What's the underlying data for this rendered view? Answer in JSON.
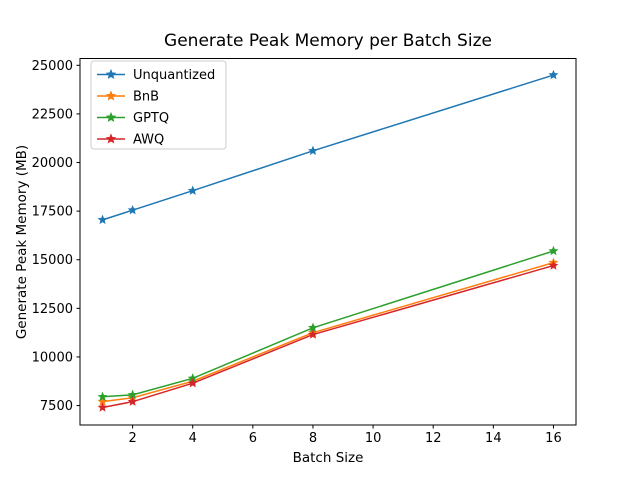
{
  "figure": {
    "background_color": "#ffffff",
    "axes_edge_color": "#000000"
  },
  "chart_data": {
    "type": "line",
    "title": "Generate Peak Memory per Batch Size",
    "xlabel": "Batch Size",
    "ylabel": "Generate Peak Memory (MB)",
    "x": [
      1,
      2,
      4,
      8,
      16
    ],
    "series": [
      {
        "name": "Unquantized",
        "color": "#1f77b4",
        "values": [
          17050,
          17550,
          18550,
          20600,
          24500
        ]
      },
      {
        "name": "BnB",
        "color": "#ff7f0e",
        "values": [
          7700,
          7900,
          8750,
          11250,
          14850
        ]
      },
      {
        "name": "GPTQ",
        "color": "#2ca02c",
        "values": [
          7950,
          8050,
          8900,
          11500,
          15450
        ]
      },
      {
        "name": "AWQ",
        "color": "#d62728",
        "values": [
          7400,
          7700,
          8650,
          11150,
          14700
        ]
      }
    ],
    "marker": "star",
    "line_width": 1.5,
    "xticks": [
      2,
      4,
      6,
      8,
      10,
      12,
      14,
      16
    ],
    "yticks": [
      7500,
      10000,
      12500,
      15000,
      17500,
      20000,
      22500,
      25000
    ],
    "xlim": [
      0.25,
      16.75
    ],
    "ylim": [
      6500,
      25350
    ],
    "grid": false,
    "legend": {
      "position": "upper left",
      "entries": [
        "Unquantized",
        "BnB",
        "GPTQ",
        "AWQ"
      ],
      "border_color": "#cccccc",
      "background_color": "#ffffff"
    }
  }
}
